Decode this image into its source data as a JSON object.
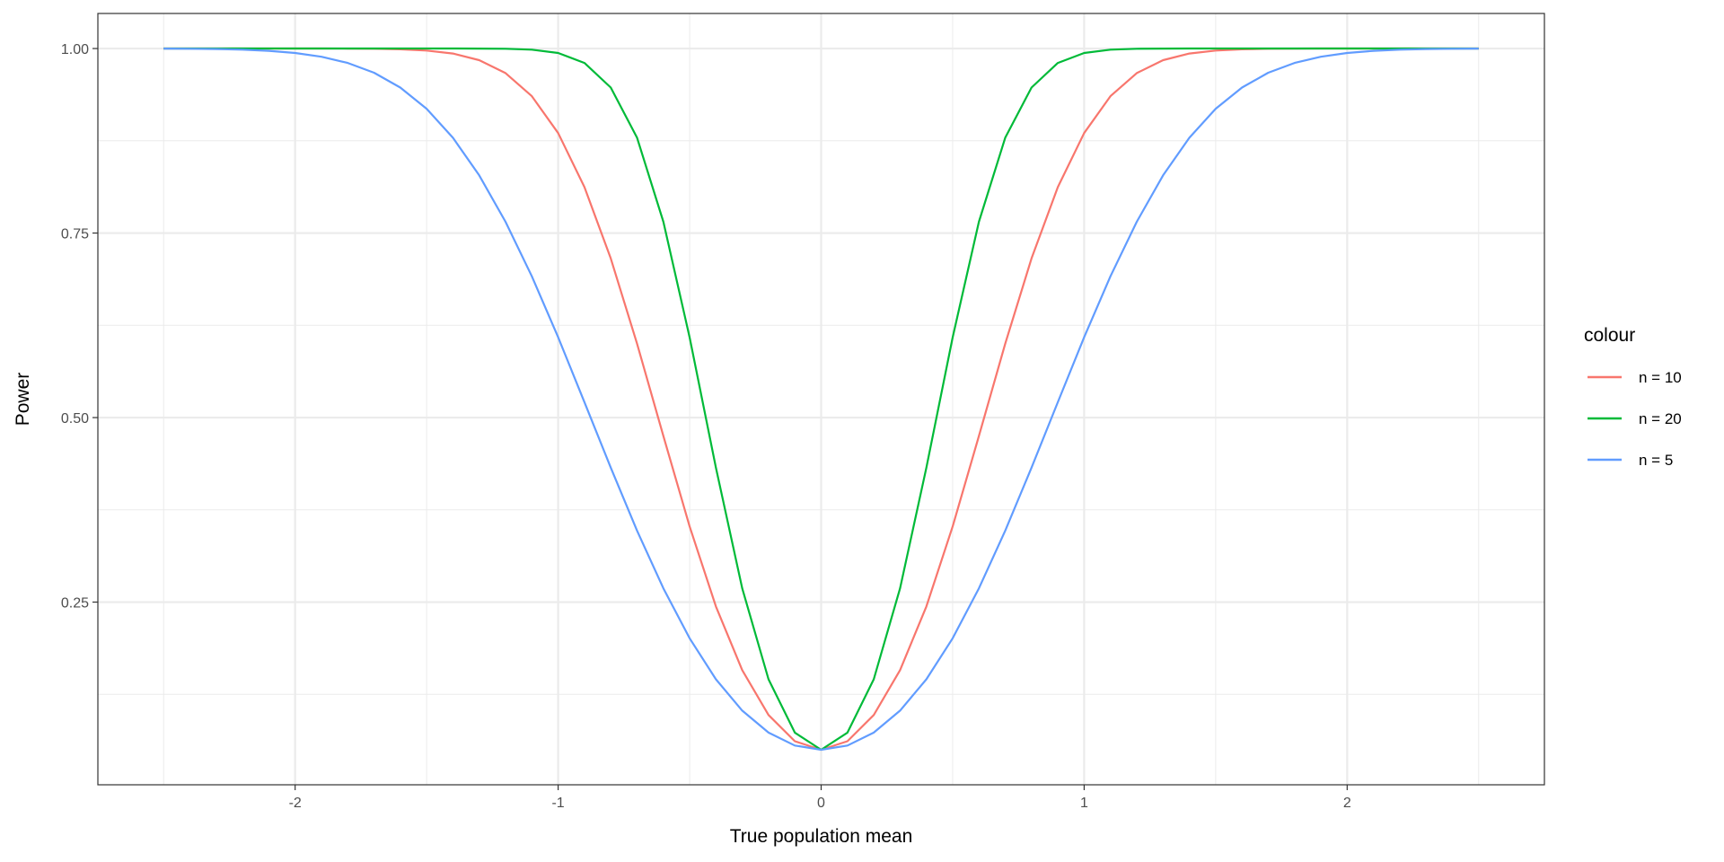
{
  "chart_data": {
    "type": "line",
    "title": "",
    "xlabel": "True population mean",
    "ylabel": "Power",
    "xlim": [
      -2.75,
      2.75
    ],
    "ylim": [
      0.0025,
      1.0475
    ],
    "xticks": [
      -2,
      -1,
      0,
      1,
      2
    ],
    "xtick_labels": [
      "-2",
      "-1",
      "0",
      "1",
      "2"
    ],
    "yticks": [
      0.25,
      0.5,
      0.75,
      1.0
    ],
    "ytick_labels": [
      "0.25",
      "0.50",
      "0.75",
      "1.00"
    ],
    "grid": true,
    "legend": {
      "title": "colour",
      "placement": "right"
    },
    "x": [
      -2.5,
      -2.4,
      -2.3,
      -2.2,
      -2.1,
      -2.0,
      -1.9,
      -1.8,
      -1.7,
      -1.6,
      -1.5,
      -1.4,
      -1.3,
      -1.2,
      -1.1,
      -1.0,
      -0.9,
      -0.8,
      -0.7,
      -0.6,
      -0.5,
      -0.4,
      -0.3,
      -0.2,
      -0.1,
      0,
      0.1,
      0.2,
      0.3,
      0.4,
      0.5,
      0.6,
      0.7,
      0.8,
      0.9,
      1.0,
      1.1,
      1.2,
      1.3,
      1.4,
      1.5,
      1.6,
      1.7,
      1.8,
      1.9,
      2.0,
      2.1,
      2.2,
      2.3,
      2.4,
      2.5
    ],
    "series": [
      {
        "name": "n = 10",
        "color": "#F8766D",
        "values": [
          1,
          1,
          1,
          1,
          1,
          1,
          1,
          0.9999,
          0.9997,
          0.999,
          0.9973,
          0.9932,
          0.9843,
          0.9667,
          0.9355,
          0.8854,
          0.8122,
          0.7156,
          0.6001,
          0.475,
          0.3526,
          0.2441,
          0.1578,
          0.097,
          0.0615,
          0.05,
          0.0615,
          0.097,
          0.1578,
          0.2441,
          0.3526,
          0.475,
          0.6001,
          0.7156,
          0.8122,
          0.8854,
          0.9355,
          0.9667,
          0.9843,
          0.9932,
          0.9973,
          0.999,
          0.9997,
          0.9999,
          1,
          1,
          1,
          1,
          1,
          1,
          1
        ]
      },
      {
        "name": "n = 20",
        "color": "#00BA38",
        "values": [
          1,
          1,
          1,
          1,
          1,
          1,
          1,
          1,
          1,
          1,
          1,
          1,
          0.9999,
          0.9997,
          0.9985,
          0.994,
          0.9805,
          0.9471,
          0.8791,
          0.7653,
          0.6088,
          0.4322,
          0.2687,
          0.1455,
          0.0732,
          0.05,
          0.0732,
          0.1455,
          0.2687,
          0.4322,
          0.6088,
          0.7653,
          0.8791,
          0.9471,
          0.9805,
          0.994,
          0.9985,
          0.9997,
          0.9999,
          1,
          1,
          1,
          1,
          1,
          1,
          1,
          1,
          1,
          1,
          1,
          1
        ]
      },
      {
        "name": "n = 5",
        "color": "#619CFF",
        "values": [
          0.9999,
          0.9997,
          0.9993,
          0.9985,
          0.9969,
          0.994,
          0.9889,
          0.9805,
          0.9672,
          0.9471,
          0.9184,
          0.8791,
          0.8282,
          0.7653,
          0.6914,
          0.6088,
          0.5209,
          0.4322,
          0.3467,
          0.2687,
          0.201,
          0.1455,
          0.103,
          0.0732,
          0.0557,
          0.05,
          0.0557,
          0.0732,
          0.103,
          0.1455,
          0.201,
          0.2687,
          0.3467,
          0.4322,
          0.5209,
          0.6088,
          0.6914,
          0.7653,
          0.8282,
          0.8791,
          0.9184,
          0.9471,
          0.9672,
          0.9805,
          0.9889,
          0.994,
          0.9969,
          0.9985,
          0.9993,
          0.9997,
          0.9999
        ]
      }
    ]
  }
}
